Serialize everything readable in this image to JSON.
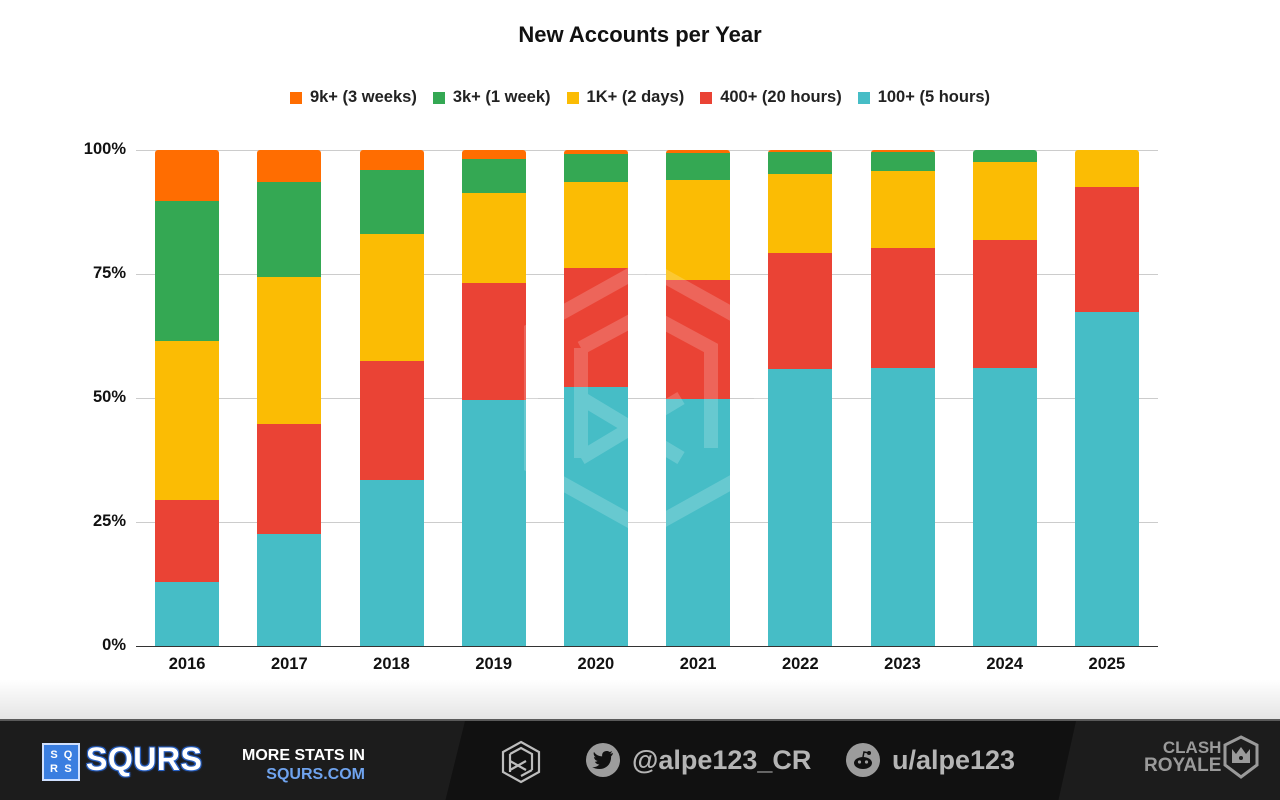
{
  "chart_data": {
    "type": "bar",
    "stacked": true,
    "percent_stacked": true,
    "title": "New Accounts per Year",
    "xlabel": "",
    "ylabel": "",
    "ylim": [
      0,
      100
    ],
    "yticks": [
      "0%",
      "25%",
      "50%",
      "75%",
      "100%"
    ],
    "grid": true,
    "legend_position": "top",
    "categories": [
      "2016",
      "2017",
      "2018",
      "2019",
      "2020",
      "2021",
      "2022",
      "2023",
      "2024",
      "2025"
    ],
    "series": [
      {
        "name": "100+ (5 hours)",
        "color": "#46BDC6",
        "values": [
          12.9,
          22.5,
          33.4,
          49.5,
          52.3,
          49.9,
          55.8,
          56.0,
          56.1,
          67.4
        ]
      },
      {
        "name": "400+ (20 hours)",
        "color": "#EA4335",
        "values": [
          16.6,
          22.3,
          24.1,
          23.6,
          24.0,
          23.8,
          23.4,
          24.2,
          25.7,
          25.1
        ]
      },
      {
        "name": "1K+ (2 days)",
        "color": "#FBBC04",
        "values": [
          31.9,
          29.7,
          25.5,
          18.2,
          17.2,
          20.2,
          15.9,
          15.5,
          15.7,
          7.5
        ]
      },
      {
        "name": "3k+ (1 week)",
        "color": "#34A853",
        "values": [
          28.3,
          19.0,
          12.9,
          6.9,
          5.7,
          5.5,
          4.6,
          4.0,
          2.5,
          0.0
        ]
      },
      {
        "name": "9k+ (3 weeks)",
        "color": "#FF6D01",
        "values": [
          10.3,
          6.5,
          4.1,
          1.8,
          0.8,
          0.6,
          0.3,
          0.3,
          0.0,
          0.0
        ]
      }
    ]
  },
  "legend": [
    {
      "label": "9k+ (3 weeks)",
      "color": "#FF6D01"
    },
    {
      "label": "3k+ (1 week)",
      "color": "#34A853"
    },
    {
      "label": "1K+ (2 days)",
      "color": "#FBBC04"
    },
    {
      "label": "400+ (20 hours)",
      "color": "#EA4335"
    },
    {
      "label": "100+ (5 hours)",
      "color": "#46BDC6"
    }
  ],
  "footer": {
    "brand_box": [
      "S",
      "Q",
      "R",
      "S"
    ],
    "brand_name": "SQURS",
    "more_stats_line1": "MORE STATS IN",
    "more_stats_line2": "SQURS.COM",
    "twitter_handle": "@alpe123_CR",
    "reddit_handle": "u/alpe123",
    "game_logo_line1": "CLASH",
    "game_logo_line2": "ROYALE"
  }
}
